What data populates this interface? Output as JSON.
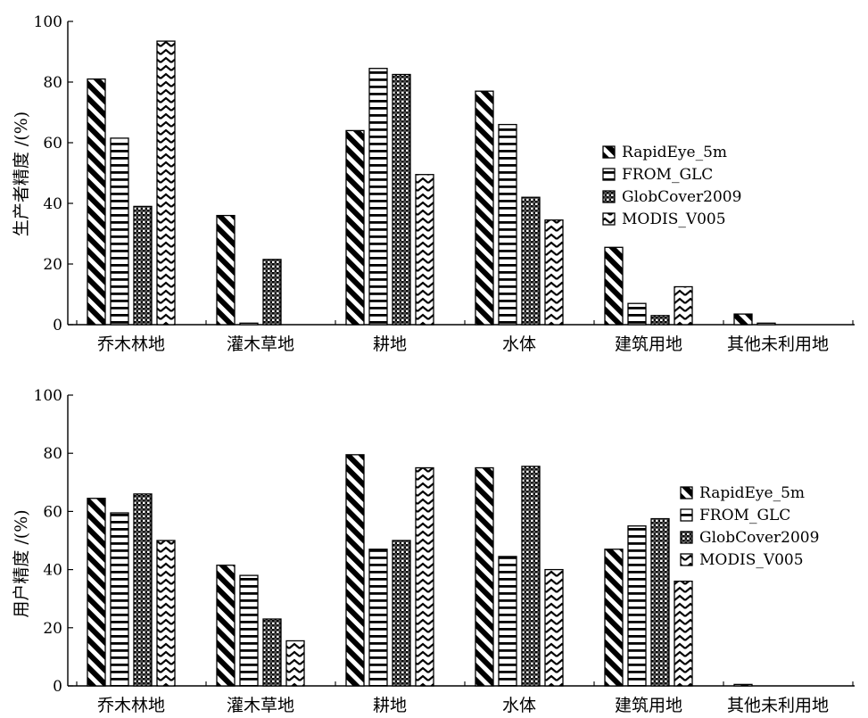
{
  "chart_data": [
    {
      "type": "bar",
      "ylabel": "生产者精度 /(%)",
      "xlabel": "",
      "ylim": [
        0,
        100
      ],
      "yticks": [
        0,
        20,
        40,
        60,
        80,
        100
      ],
      "grid": false,
      "legend_position": "right",
      "categories": [
        "乔木林地",
        "灌木草地",
        "耕地",
        "水体",
        "建筑用地",
        "其他未利用地"
      ],
      "series": [
        {
          "name": "RapidEye_5m",
          "values": [
            81,
            36,
            64,
            77,
            25.5,
            3.5
          ]
        },
        {
          "name": "FROM_GLC",
          "values": [
            61.5,
            0.5,
            84.5,
            66,
            7,
            0.5
          ]
        },
        {
          "name": "GlobCover2009",
          "values": [
            39,
            21.5,
            82.5,
            42,
            3,
            0
          ]
        },
        {
          "name": "MODIS_V005",
          "values": [
            93.5,
            0,
            49.5,
            34.5,
            12.5,
            0
          ]
        }
      ]
    },
    {
      "type": "bar",
      "ylabel": "用户精度 /(%)",
      "xlabel": "",
      "ylim": [
        0,
        100
      ],
      "yticks": [
        0,
        20,
        40,
        60,
        80,
        100
      ],
      "grid": false,
      "legend_position": "right",
      "categories": [
        "乔木林地",
        "灌木草地",
        "耕地",
        "水体",
        "建筑用地",
        "其他未利用地"
      ],
      "series": [
        {
          "name": "RapidEye_5m",
          "values": [
            64.5,
            41.5,
            79.5,
            75,
            47,
            0.5
          ]
        },
        {
          "name": "FROM_GLC",
          "values": [
            59.5,
            38,
            47,
            44.5,
            55,
            0
          ]
        },
        {
          "name": "GlobCover2009",
          "values": [
            66,
            23,
            50,
            75.5,
            57.5,
            0
          ]
        },
        {
          "name": "MODIS_V005",
          "values": [
            50,
            15.5,
            75,
            40,
            36,
            0
          ]
        }
      ]
    }
  ]
}
